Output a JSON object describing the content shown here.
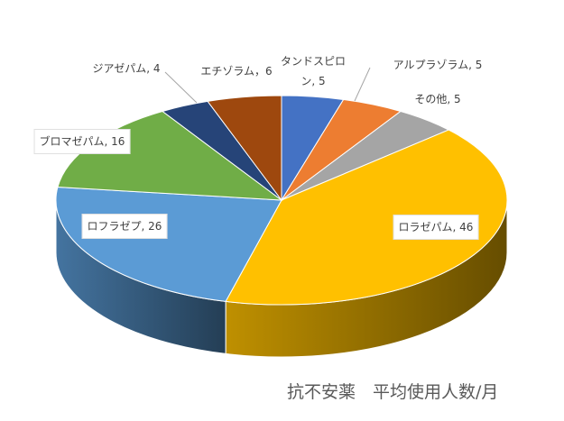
{
  "chart_data": {
    "type": "pie3d",
    "title": "抗不安薬　平均使用人数/月",
    "values": [
      5,
      5,
      5,
      46,
      26,
      16,
      4,
      6
    ],
    "value_labels": [
      "タンドスピロン, 5",
      "アルプラゾラム, 5",
      "その他, 5",
      "ロラゼパム, 46",
      "ロフラゼプ, 26",
      "ブロマゼパム, 16",
      "ジアゼパム, 4",
      "エチゾラム，6"
    ],
    "colors": [
      "#4472c4",
      "#ed7d31",
      "#a5a5a5",
      "#ffc000",
      "#5b9bd5",
      "#70ad47",
      "#264478",
      "#9e480e"
    ]
  }
}
